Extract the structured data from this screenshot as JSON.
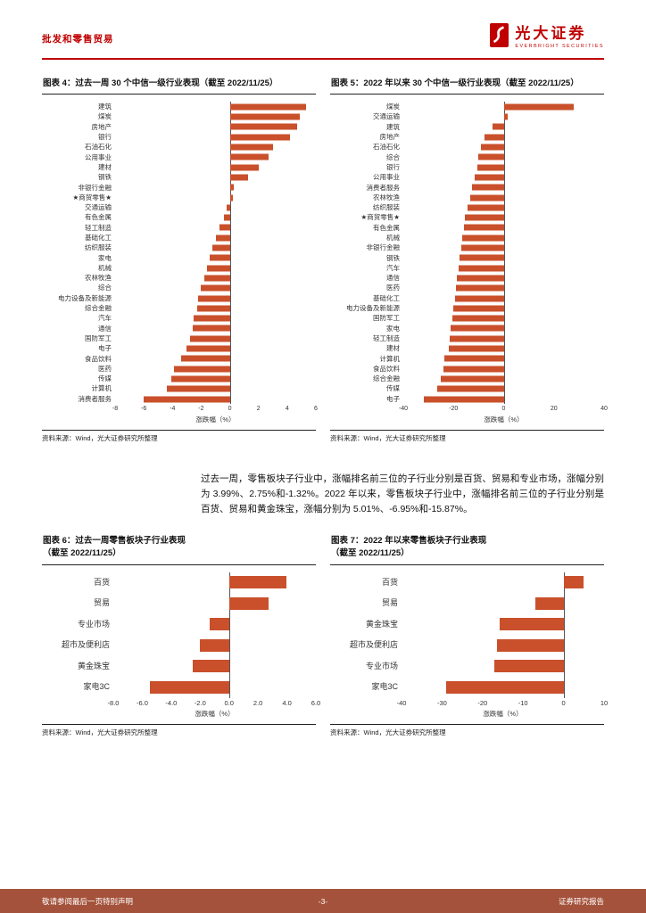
{
  "page": {
    "header": {
      "section_title": "批发和零售贸易",
      "brand_cn": "光大证券",
      "brand_en": "EVERBRIGHT SECURITIES"
    },
    "paragraph": "过去一周，零售板块子行业中，涨幅排名前三位的子行业分别是百货、贸易和专业市场，涨幅分别为 3.99%、2.75%和-1.32%。2022 年以来，零售板块子行业中，涨幅排名前三位的子行业分别是百货、贸易和黄金珠宝，涨幅分别为 5.01%、-6.95%和-15.87%。",
    "footer": {
      "left": "敬请参阅最后一页特别声明",
      "center": "-3-",
      "right": "证券研究报告"
    }
  },
  "colors": {
    "accent_red": "#C00000",
    "bar": "#C9502B",
    "footer_bg": "#A4523B"
  },
  "chart_data": [
    {
      "type": "bar",
      "orientation": "horizontal",
      "title": "图表 4：过去一周 30 个中信一级行业表现（截至 2022/11/25）",
      "categories": [
        "建筑",
        "煤炭",
        "房地产",
        "银行",
        "石油石化",
        "公用事业",
        "建材",
        "钢铁",
        "非银行金融",
        "★商贸零售★",
        "交通运输",
        "有色金属",
        "轻工制造",
        "基础化工",
        "纺织服装",
        "家电",
        "机械",
        "农林牧渔",
        "综合",
        "电力设备及新能源",
        "综合金融",
        "汽车",
        "通信",
        "国防军工",
        "电子",
        "食品饮料",
        "医药",
        "传媒",
        "计算机",
        "消费者服务"
      ],
      "values": [
        5.3,
        4.9,
        4.7,
        4.2,
        3.0,
        2.7,
        2.0,
        1.3,
        0.3,
        0.2,
        -0.2,
        -0.4,
        -0.7,
        -1.0,
        -1.2,
        -1.4,
        -1.6,
        -1.8,
        -2.0,
        -2.2,
        -2.3,
        -2.5,
        -2.6,
        -2.8,
        -3.0,
        -3.4,
        -3.9,
        -4.1,
        -4.4,
        -6.0
      ],
      "xlabel": "涨跌幅（%）",
      "xlim": [
        -8,
        6
      ],
      "xticks": [
        "-8",
        "-6",
        "-4",
        "-2",
        "0",
        "2",
        "4",
        "6"
      ],
      "legend": "none",
      "grid": false,
      "source": "资料来源：Wind，光大证券研究所整理"
    },
    {
      "type": "bar",
      "orientation": "horizontal",
      "title": "图表 5：2022 年以来 30 个中信一级行业表现（截至 2022/11/25）",
      "categories": [
        "煤炭",
        "交通运输",
        "建筑",
        "房地产",
        "石油石化",
        "综合",
        "银行",
        "公用事业",
        "消费者服务",
        "农林牧渔",
        "纺织服装",
        "★商贸零售★",
        "有色金属",
        "机械",
        "非银行金融",
        "钢铁",
        "汽车",
        "通信",
        "医药",
        "基础化工",
        "电力设备及新能源",
        "国防军工",
        "家电",
        "轻工制造",
        "建材",
        "计算机",
        "食品饮料",
        "综合金融",
        "传媒",
        "电子"
      ],
      "values": [
        28.0,
        1.5,
        -4.5,
        -7.5,
        -9.0,
        -10.0,
        -10.5,
        -11.5,
        -12.5,
        -13.5,
        -14.5,
        -15.5,
        -16.0,
        -16.5,
        -17.0,
        -17.5,
        -18.0,
        -18.5,
        -19.0,
        -19.5,
        -20.0,
        -20.5,
        -21.0,
        -21.5,
        -22.0,
        -23.5,
        -24.0,
        -25.0,
        -26.5,
        -32.0
      ],
      "xlabel": "涨跌幅（%）",
      "xlim": [
        -40,
        40
      ],
      "xticks": [
        "-40",
        "-20",
        "0",
        "20",
        "40"
      ],
      "legend": "none",
      "grid": false,
      "source": "资料来源：Wind，光大证券研究所整理"
    },
    {
      "type": "bar",
      "orientation": "horizontal",
      "title": "图表 6：过去一周零售板块子行业表现",
      "subtitle": "（截至 2022/11/25）",
      "categories": [
        "百货",
        "贸易",
        "专业市场",
        "超市及便利店",
        "黄金珠宝",
        "家电3C"
      ],
      "values": [
        3.99,
        2.75,
        -1.32,
        -2.0,
        -2.5,
        -5.5
      ],
      "xlabel": "涨跌幅（%）",
      "xlim": [
        -8,
        6
      ],
      "xticks": [
        "-8.0",
        "-6.0",
        "-4.0",
        "-2.0",
        "0.0",
        "2.0",
        "4.0",
        "6.0"
      ],
      "legend": "none",
      "grid": false,
      "source": "资料来源：Wind，光大证券研究所整理"
    },
    {
      "type": "bar",
      "orientation": "horizontal",
      "title": "图表 7：2022 年以来零售板块子行业表现",
      "subtitle": "（截至 2022/11/25）",
      "categories": [
        "百货",
        "贸易",
        "黄金珠宝",
        "超市及便利店",
        "专业市场",
        "家电3C"
      ],
      "values": [
        5.01,
        -6.95,
        -15.87,
        -16.5,
        -17.0,
        -29.0
      ],
      "xlabel": "涨跌幅（%）",
      "xlim": [
        -40,
        10
      ],
      "xticks": [
        "-40",
        "-30",
        "-20",
        "-10",
        "0",
        "10"
      ],
      "legend": "none",
      "grid": false,
      "source": "资料来源：Wind，光大证券研究所整理"
    }
  ]
}
